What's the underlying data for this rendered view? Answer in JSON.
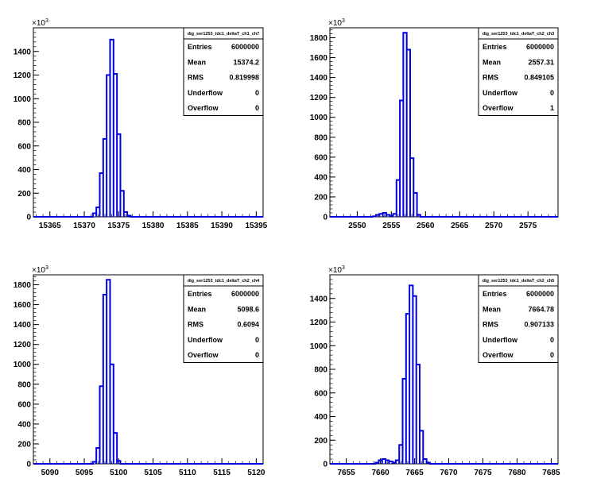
{
  "chart_data": [
    {
      "type": "histogram",
      "stats": {
        "title": "dig_ser1253_tdc1_deltaT_ch1_ch7",
        "rows": [
          {
            "label": "Entries",
            "value": "6000000"
          },
          {
            "label": "Mean",
            "value": "15374.2"
          },
          {
            "label": "RMS",
            "value": "0.819998"
          },
          {
            "label": "Underflow",
            "value": "0"
          },
          {
            "label": "Overflow",
            "value": "0"
          }
        ]
      },
      "y_multiplier": "×10",
      "y_multiplier_exp": "3",
      "xlim": [
        15362.6,
        15396.0
      ],
      "ylim": [
        0,
        1600
      ],
      "x_ticks": [
        15365,
        15370,
        15375,
        15380,
        15385,
        15390,
        15395
      ],
      "y_ticks": [
        0,
        200,
        400,
        600,
        800,
        1000,
        1200,
        1400
      ],
      "bin_width": 0.5,
      "x": [
        15371.5,
        15372.0,
        15372.5,
        15373.0,
        15373.5,
        15374.0,
        15374.5,
        15375.0,
        15375.5,
        15376.0,
        15376.5
      ],
      "values": [
        30,
        80,
        370,
        660,
        1200,
        1500,
        1210,
        700,
        220,
        40,
        10
      ]
    },
    {
      "type": "histogram",
      "stats": {
        "title": "dig_ser1253_tdc1_deltaT_ch2_ch3",
        "rows": [
          {
            "label": "Entries",
            "value": "6000000"
          },
          {
            "label": "Mean",
            "value": "2557.31"
          },
          {
            "label": "RMS",
            "value": "0.849105"
          },
          {
            "label": "Underflow",
            "value": "0"
          },
          {
            "label": "Overflow",
            "value": "1"
          }
        ]
      },
      "y_multiplier": "×10",
      "y_multiplier_exp": "3",
      "xlim": [
        2546.0,
        2579.4
      ],
      "ylim": [
        0,
        1900
      ],
      "x_ticks": [
        2550,
        2555,
        2560,
        2565,
        2570,
        2575
      ],
      "y_ticks": [
        0,
        200,
        400,
        600,
        800,
        1000,
        1200,
        1400,
        1600,
        1800
      ],
      "bin_width": 0.5,
      "x": [
        2552.5,
        2553.0,
        2553.5,
        2554.0,
        2554.5,
        2555.0,
        2555.5,
        2556.0,
        2556.5,
        2557.0,
        2557.5,
        2558.0,
        2558.5,
        2559.0
      ],
      "values": [
        5,
        20,
        30,
        40,
        20,
        10,
        30,
        370,
        1170,
        1850,
        1680,
        590,
        240,
        20
      ]
    },
    {
      "type": "histogram",
      "stats": {
        "title": "dig_ser1253_tdc1_deltaT_ch2_ch4",
        "rows": [
          {
            "label": "Entries",
            "value": "6000000"
          },
          {
            "label": "Mean",
            "value": "5098.6"
          },
          {
            "label": "RMS",
            "value": "0.6094"
          },
          {
            "label": "Underflow",
            "value": "0"
          },
          {
            "label": "Overflow",
            "value": "0"
          }
        ]
      },
      "y_multiplier": "×10",
      "y_multiplier_exp": "3",
      "xlim": [
        5087.6,
        5121.0
      ],
      "ylim": [
        0,
        1900
      ],
      "x_ticks": [
        5090,
        5095,
        5100,
        5105,
        5110,
        5115,
        5120
      ],
      "y_ticks": [
        0,
        200,
        400,
        600,
        800,
        1000,
        1200,
        1400,
        1600,
        1800
      ],
      "bin_width": 0.5,
      "x": [
        5096.5,
        5097.0,
        5097.5,
        5098.0,
        5098.5,
        5099.0,
        5099.5,
        5100.0
      ],
      "values": [
        20,
        160,
        780,
        1700,
        1850,
        1000,
        310,
        30
      ]
    },
    {
      "type": "histogram",
      "stats": {
        "title": "dig_ser1253_tdc1_deltaT_ch2_ch5",
        "rows": [
          {
            "label": "Entries",
            "value": "6000000"
          },
          {
            "label": "Mean",
            "value": "7664.78"
          },
          {
            "label": "RMS",
            "value": "0.907133"
          },
          {
            "label": "Underflow",
            "value": "0"
          },
          {
            "label": "Overflow",
            "value": "0"
          }
        ]
      },
      "y_multiplier": "×10",
      "y_multiplier_exp": "3",
      "xlim": [
        7652.6,
        7686.0
      ],
      "ylim": [
        0,
        1600
      ],
      "x_ticks": [
        7655,
        7660,
        7665,
        7670,
        7675,
        7680,
        7685
      ],
      "y_ticks": [
        0,
        200,
        400,
        600,
        800,
        1000,
        1200,
        1400
      ],
      "bin_width": 0.5,
      "x": [
        7659.5,
        7660.0,
        7660.5,
        7661.0,
        7661.5,
        7662.0,
        7662.5,
        7663.0,
        7663.5,
        7664.0,
        7664.5,
        7665.0,
        7665.5,
        7666.0,
        7666.5,
        7667.0
      ],
      "values": [
        10,
        30,
        40,
        30,
        20,
        10,
        30,
        160,
        720,
        1270,
        1510,
        1420,
        840,
        280,
        40,
        10
      ]
    }
  ]
}
